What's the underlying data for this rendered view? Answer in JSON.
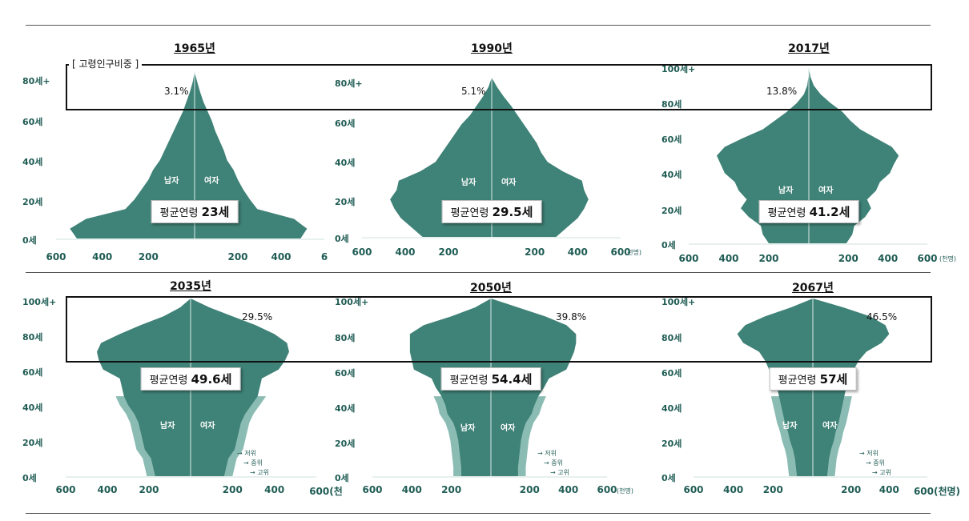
{
  "legend_label": "[ 고령인구비중 ]",
  "sex_labels": {
    "male": "남자",
    "female": "여자"
  },
  "avg_prefix": "평균연령",
  "unit": "(천명)",
  "variant_labels": [
    "저위",
    "중위",
    "고위"
  ],
  "colors": {
    "pyramid": "#3f8277",
    "pyramid_light": "#8bbcb3",
    "axis_text": "#1f5c54"
  },
  "chart_data": [
    {
      "type": "population-pyramid",
      "title": "1965년",
      "elderly_share": "3.1%",
      "avg_age": "23세",
      "y_ticks": [
        "80세+",
        "60세",
        "40세",
        "20세",
        "0세"
      ],
      "x_ticks": [
        "600",
        "400",
        "200",
        "200",
        "400",
        "6"
      ],
      "age_max": 85,
      "xlim": [
        0,
        600
      ],
      "male": [
        [
          0,
          510
        ],
        [
          5,
          540
        ],
        [
          10,
          470
        ],
        [
          15,
          300
        ],
        [
          20,
          260
        ],
        [
          25,
          230
        ],
        [
          30,
          200
        ],
        [
          35,
          180
        ],
        [
          40,
          150
        ],
        [
          45,
          130
        ],
        [
          50,
          110
        ],
        [
          55,
          90
        ],
        [
          60,
          70
        ],
        [
          65,
          50
        ],
        [
          70,
          35
        ],
        [
          75,
          20
        ],
        [
          80,
          8
        ],
        [
          85,
          0
        ]
      ],
      "female": [
        [
          0,
          490
        ],
        [
          5,
          520
        ],
        [
          10,
          460
        ],
        [
          15,
          290
        ],
        [
          20,
          255
        ],
        [
          25,
          225
        ],
        [
          30,
          200
        ],
        [
          35,
          180
        ],
        [
          40,
          150
        ],
        [
          45,
          135
        ],
        [
          50,
          115
        ],
        [
          55,
          95
        ],
        [
          60,
          80
        ],
        [
          65,
          60
        ],
        [
          70,
          40
        ],
        [
          75,
          25
        ],
        [
          80,
          12
        ],
        [
          85,
          0
        ]
      ]
    },
    {
      "type": "population-pyramid",
      "title": "1990년",
      "elderly_share": "5.1%",
      "avg_age": "29.5세",
      "y_ticks": [
        "80세+",
        "60세",
        "40세",
        "20세",
        "0세"
      ],
      "x_ticks": [
        "600",
        "400",
        "200",
        "200",
        "400",
        "600"
      ],
      "age_max": 85,
      "xlim": [
        0,
        600
      ],
      "male": [
        [
          0,
          320
        ],
        [
          5,
          370
        ],
        [
          10,
          420
        ],
        [
          15,
          450
        ],
        [
          20,
          470
        ],
        [
          25,
          440
        ],
        [
          30,
          430
        ],
        [
          35,
          330
        ],
        [
          40,
          260
        ],
        [
          45,
          230
        ],
        [
          50,
          200
        ],
        [
          55,
          170
        ],
        [
          60,
          140
        ],
        [
          65,
          100
        ],
        [
          70,
          70
        ],
        [
          75,
          40
        ],
        [
          80,
          15
        ],
        [
          85,
          0
        ]
      ],
      "female": [
        [
          0,
          300
        ],
        [
          5,
          350
        ],
        [
          10,
          400
        ],
        [
          15,
          430
        ],
        [
          20,
          450
        ],
        [
          25,
          430
        ],
        [
          30,
          420
        ],
        [
          35,
          330
        ],
        [
          40,
          260
        ],
        [
          45,
          230
        ],
        [
          50,
          210
        ],
        [
          55,
          180
        ],
        [
          60,
          150
        ],
        [
          65,
          120
        ],
        [
          70,
          90
        ],
        [
          75,
          55
        ],
        [
          80,
          25
        ],
        [
          85,
          0
        ]
      ]
    },
    {
      "type": "population-pyramid",
      "title": "2017년",
      "elderly_share": "13.8%",
      "avg_age": "41.2세",
      "y_ticks": [
        "100세+",
        "80세",
        "60세",
        "40세",
        "20세",
        "0세"
      ],
      "x_ticks": [
        "600",
        "400",
        "200",
        "200",
        "400",
        "600"
      ],
      "age_max": 100,
      "xlim": [
        0,
        600
      ],
      "male": [
        [
          0,
          200
        ],
        [
          5,
          230
        ],
        [
          10,
          240
        ],
        [
          15,
          300
        ],
        [
          20,
          340
        ],
        [
          25,
          310
        ],
        [
          30,
          350
        ],
        [
          35,
          370
        ],
        [
          40,
          420
        ],
        [
          45,
          440
        ],
        [
          50,
          460
        ],
        [
          55,
          420
        ],
        [
          60,
          330
        ],
        [
          65,
          230
        ],
        [
          70,
          170
        ],
        [
          75,
          110
        ],
        [
          80,
          60
        ],
        [
          85,
          25
        ],
        [
          90,
          8
        ],
        [
          95,
          2
        ],
        [
          100,
          0
        ]
      ],
      "female": [
        [
          0,
          190
        ],
        [
          5,
          220
        ],
        [
          10,
          230
        ],
        [
          15,
          285
        ],
        [
          20,
          315
        ],
        [
          25,
          295
        ],
        [
          30,
          340
        ],
        [
          35,
          360
        ],
        [
          40,
          410
        ],
        [
          45,
          430
        ],
        [
          50,
          455
        ],
        [
          55,
          420
        ],
        [
          60,
          340
        ],
        [
          65,
          260
        ],
        [
          70,
          210
        ],
        [
          75,
          170
        ],
        [
          80,
          110
        ],
        [
          85,
          60
        ],
        [
          90,
          25
        ],
        [
          95,
          8
        ],
        [
          100,
          0
        ]
      ]
    },
    {
      "type": "population-pyramid",
      "title": "2035년",
      "elderly_share": "29.5%",
      "avg_age": "49.6세",
      "y_ticks": [
        "100세+",
        "80세",
        "60세",
        "40세",
        "20세",
        "0세"
      ],
      "x_ticks": [
        "600",
        "400",
        "200",
        "200",
        "400",
        "600(천"
      ],
      "age_max": 100,
      "xlim": [
        0,
        600
      ],
      "male": [
        [
          0,
          170
        ],
        [
          5,
          180
        ],
        [
          10,
          190
        ],
        [
          15,
          220
        ],
        [
          20,
          230
        ],
        [
          25,
          240
        ],
        [
          30,
          250
        ],
        [
          35,
          270
        ],
        [
          40,
          300
        ],
        [
          45,
          320
        ],
        [
          50,
          330
        ],
        [
          55,
          340
        ],
        [
          60,
          420
        ],
        [
          65,
          440
        ],
        [
          70,
          450
        ],
        [
          75,
          430
        ],
        [
          80,
          340
        ],
        [
          85,
          240
        ],
        [
          90,
          130
        ],
        [
          95,
          50
        ],
        [
          100,
          0
        ]
      ],
      "female": [
        [
          0,
          160
        ],
        [
          5,
          170
        ],
        [
          10,
          180
        ],
        [
          15,
          210
        ],
        [
          20,
          220
        ],
        [
          25,
          230
        ],
        [
          30,
          240
        ],
        [
          35,
          260
        ],
        [
          40,
          290
        ],
        [
          45,
          320
        ],
        [
          50,
          330
        ],
        [
          55,
          340
        ],
        [
          60,
          420
        ],
        [
          65,
          450
        ],
        [
          70,
          470
        ],
        [
          75,
          460
        ],
        [
          80,
          400
        ],
        [
          85,
          310
        ],
        [
          90,
          200
        ],
        [
          95,
          90
        ],
        [
          100,
          0
        ]
      ]
    },
    {
      "type": "population-pyramid",
      "title": "2050년",
      "elderly_share": "39.8%",
      "avg_age": "54.4세",
      "y_ticks": [
        "100세+",
        "80세",
        "60세",
        "40세",
        "20세",
        "0세"
      ],
      "x_ticks": [
        "600",
        "400",
        "200",
        "200",
        "400",
        "600"
      ],
      "age_max": 100,
      "xlim": [
        0,
        600
      ],
      "male": [
        [
          0,
          150
        ],
        [
          5,
          150
        ],
        [
          10,
          155
        ],
        [
          15,
          160
        ],
        [
          20,
          165
        ],
        [
          25,
          175
        ],
        [
          30,
          190
        ],
        [
          35,
          220
        ],
        [
          40,
          230
        ],
        [
          45,
          250
        ],
        [
          50,
          280
        ],
        [
          55,
          300
        ],
        [
          60,
          390
        ],
        [
          65,
          400
        ],
        [
          70,
          410
        ],
        [
          75,
          410
        ],
        [
          80,
          410
        ],
        [
          85,
          340
        ],
        [
          90,
          200
        ],
        [
          95,
          80
        ],
        [
          100,
          0
        ]
      ],
      "female": [
        [
          0,
          140
        ],
        [
          5,
          140
        ],
        [
          10,
          145
        ],
        [
          15,
          150
        ],
        [
          20,
          155
        ],
        [
          25,
          165
        ],
        [
          30,
          180
        ],
        [
          35,
          210
        ],
        [
          40,
          225
        ],
        [
          45,
          245
        ],
        [
          50,
          275
        ],
        [
          55,
          300
        ],
        [
          60,
          390
        ],
        [
          65,
          410
        ],
        [
          70,
          430
        ],
        [
          75,
          440
        ],
        [
          80,
          440
        ],
        [
          85,
          390
        ],
        [
          90,
          280
        ],
        [
          95,
          140
        ],
        [
          100,
          0
        ]
      ]
    },
    {
      "type": "population-pyramid",
      "title": "2067년",
      "elderly_share": "46.5%",
      "avg_age": "57세",
      "y_ticks": [
        "100세+",
        "80세",
        "60세",
        "40세",
        "20세",
        "0세"
      ],
      "x_ticks": [
        "600",
        "400",
        "200",
        "200",
        "400",
        "600(천명)"
      ],
      "age_max": 100,
      "xlim": [
        0,
        600
      ],
      "male": [
        [
          0,
          80
        ],
        [
          5,
          85
        ],
        [
          10,
          90
        ],
        [
          15,
          100
        ],
        [
          20,
          115
        ],
        [
          25,
          125
        ],
        [
          30,
          140
        ],
        [
          35,
          150
        ],
        [
          40,
          160
        ],
        [
          45,
          170
        ],
        [
          50,
          180
        ],
        [
          55,
          190
        ],
        [
          60,
          220
        ],
        [
          65,
          240
        ],
        [
          70,
          270
        ],
        [
          75,
          350
        ],
        [
          80,
          380
        ],
        [
          85,
          340
        ],
        [
          90,
          240
        ],
        [
          95,
          110
        ],
        [
          100,
          0
        ]
      ],
      "female": [
        [
          0,
          75
        ],
        [
          5,
          80
        ],
        [
          10,
          85
        ],
        [
          15,
          95
        ],
        [
          20,
          110
        ],
        [
          25,
          120
        ],
        [
          30,
          135
        ],
        [
          35,
          145
        ],
        [
          40,
          155
        ],
        [
          45,
          165
        ],
        [
          50,
          175
        ],
        [
          55,
          185
        ],
        [
          60,
          215
        ],
        [
          65,
          240
        ],
        [
          70,
          280
        ],
        [
          75,
          360
        ],
        [
          80,
          400
        ],
        [
          85,
          380
        ],
        [
          90,
          300
        ],
        [
          95,
          160
        ],
        [
          100,
          0
        ]
      ]
    }
  ]
}
